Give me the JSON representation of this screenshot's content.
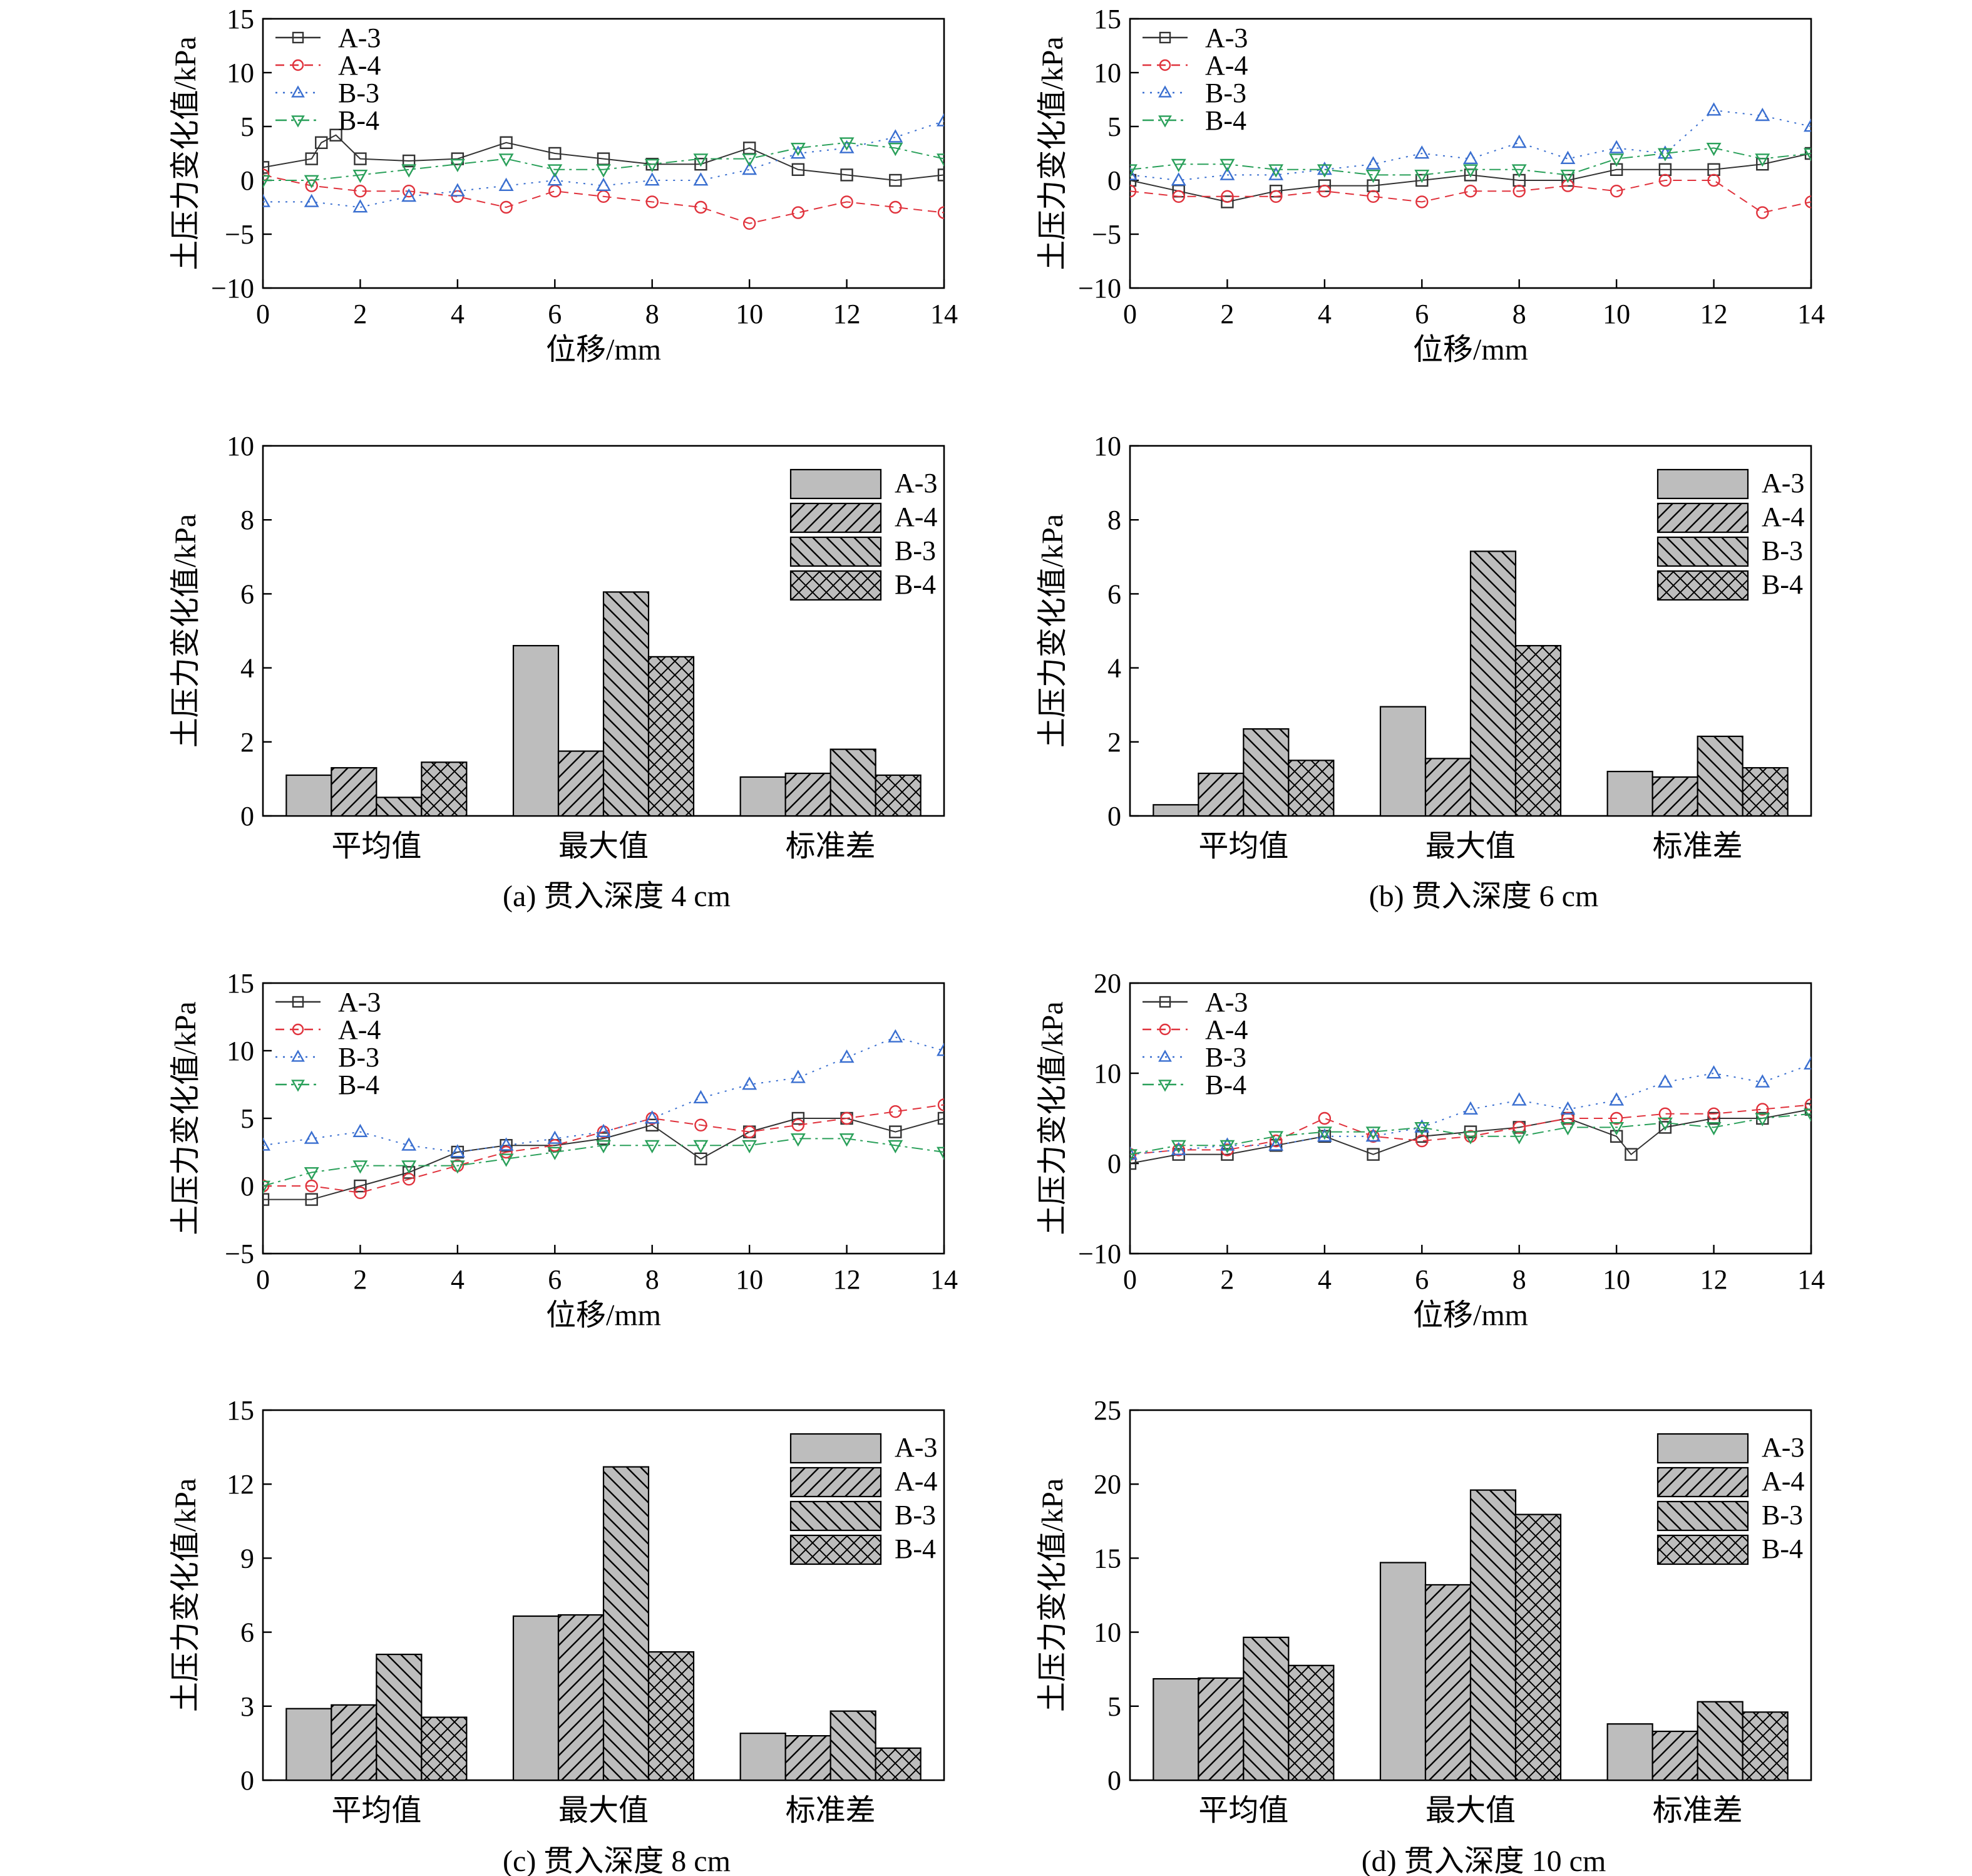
{
  "colors": {
    "A-3": "#333333",
    "A-4": "#e0323c",
    "B-3": "#3a6fd0",
    "B-4": "#2aa05a",
    "bar_fill": "#bdbdbd"
  },
  "figure": {
    "captions": [
      "(a) 贯入深度 4 cm",
      "(b) 贯入深度 6 cm",
      "(c) 贯入深度 8 cm",
      "(d) 贯入深度 10 cm"
    ]
  },
  "chart_data": [
    {
      "type": "scatter",
      "panel": "a-top",
      "xlabel": "位移/mm",
      "ylabel": "土压力变化值/kPa",
      "xlim": [
        0,
        14
      ],
      "ylim": [
        -10,
        15
      ],
      "xticks": [
        0,
        2,
        4,
        6,
        8,
        10,
        12,
        14
      ],
      "yticks": [
        -10,
        -5,
        0,
        5,
        10,
        15
      ],
      "legend_position": "top-left",
      "series": [
        {
          "name": "A-3",
          "marker": "square",
          "x": [
            0,
            1,
            1.2,
            1.5,
            2,
            3,
            4,
            5,
            6,
            7,
            8,
            9,
            10,
            11,
            12,
            13,
            14
          ],
          "y": [
            1.2,
            2,
            3.5,
            4.2,
            2,
            1.8,
            2,
            3.5,
            2.5,
            2,
            1.5,
            1.5,
            3,
            1,
            0.5,
            0,
            0.5
          ]
        },
        {
          "name": "A-4",
          "marker": "circle",
          "x": [
            0,
            1,
            2,
            3,
            4,
            5,
            6,
            7,
            8,
            9,
            10,
            11,
            12,
            13,
            14
          ],
          "y": [
            0.5,
            -0.5,
            -1,
            -1,
            -1.5,
            -2.5,
            -1,
            -1.5,
            -2,
            -2.5,
            -4,
            -3,
            -2,
            -2.5,
            -3
          ]
        },
        {
          "name": "B-3",
          "marker": "triangle-up",
          "x": [
            0,
            1,
            2,
            3,
            4,
            5,
            6,
            7,
            8,
            9,
            10,
            11,
            12,
            13,
            14
          ],
          "y": [
            -2,
            -2,
            -2.5,
            -1.5,
            -1,
            -0.5,
            0,
            -0.5,
            0,
            0,
            1,
            2.5,
            3,
            4,
            5.5
          ]
        },
        {
          "name": "B-4",
          "marker": "triangle-down",
          "x": [
            0,
            1,
            2,
            3,
            4,
            5,
            6,
            7,
            8,
            9,
            10,
            11,
            12,
            13,
            14
          ],
          "y": [
            0,
            0,
            0.5,
            1,
            1.5,
            2,
            1,
            1,
            1.5,
            2,
            2,
            3,
            3.5,
            3,
            2
          ]
        }
      ]
    },
    {
      "type": "scatter",
      "panel": "b-top",
      "xlabel": "位移/mm",
      "ylabel": "土压力变化值/kPa",
      "xlim": [
        0,
        14
      ],
      "ylim": [
        -10,
        15
      ],
      "xticks": [
        0,
        2,
        4,
        6,
        8,
        10,
        12,
        14
      ],
      "yticks": [
        -10,
        -5,
        0,
        5,
        10,
        15
      ],
      "legend_position": "top-left",
      "series": [
        {
          "name": "A-3",
          "marker": "square",
          "x": [
            0,
            1,
            2,
            3,
            4,
            5,
            6,
            7,
            8,
            9,
            10,
            11,
            12,
            13,
            14
          ],
          "y": [
            0,
            -1,
            -2,
            -1,
            -0.5,
            -0.5,
            0,
            0.5,
            0,
            0,
            1,
            1,
            1,
            1.5,
            2.5
          ]
        },
        {
          "name": "A-4",
          "marker": "circle",
          "x": [
            0,
            1,
            2,
            3,
            4,
            5,
            6,
            7,
            8,
            9,
            10,
            11,
            12,
            13,
            14
          ],
          "y": [
            -1,
            -1.5,
            -1.5,
            -1.5,
            -1,
            -1.5,
            -2,
            -1,
            -1,
            -0.5,
            -1,
            0,
            0,
            -3,
            -2
          ]
        },
        {
          "name": "B-3",
          "marker": "triangle-up",
          "x": [
            0,
            1,
            2,
            3,
            4,
            5,
            6,
            7,
            8,
            9,
            10,
            11,
            12,
            13,
            14
          ],
          "y": [
            0.5,
            0,
            0.5,
            0.5,
            1,
            1.5,
            2.5,
            2,
            3.5,
            2,
            3,
            2.5,
            6.5,
            6,
            5
          ]
        },
        {
          "name": "B-4",
          "marker": "triangle-down",
          "x": [
            0,
            1,
            2,
            3,
            4,
            5,
            6,
            7,
            8,
            9,
            10,
            11,
            12,
            13,
            14
          ],
          "y": [
            1,
            1.5,
            1.5,
            1,
            1,
            0.5,
            0.5,
            1,
            1,
            0.5,
            2,
            2.5,
            3,
            2,
            2.5
          ]
        }
      ]
    },
    {
      "type": "bar",
      "panel": "a-bottom",
      "ylabel": "土压力变化值/kPa",
      "ylim": [
        0,
        10
      ],
      "yticks": [
        0,
        2,
        4,
        6,
        8,
        10
      ],
      "categories": [
        "平均值",
        "最大值",
        "标准差"
      ],
      "legend_position": "top-right",
      "series": [
        {
          "name": "A-3",
          "pattern": "solid",
          "values": [
            1.1,
            4.6,
            1.05
          ]
        },
        {
          "name": "A-4",
          "pattern": "diag-right",
          "values": [
            1.3,
            1.75,
            1.15
          ]
        },
        {
          "name": "B-3",
          "pattern": "diag-left",
          "values": [
            0.5,
            6.05,
            1.8
          ]
        },
        {
          "name": "B-4",
          "pattern": "crosshatch",
          "values": [
            1.45,
            4.3,
            1.1
          ]
        }
      ]
    },
    {
      "type": "bar",
      "panel": "b-bottom",
      "ylabel": "土压力变化值/kPa",
      "ylim": [
        0,
        10
      ],
      "yticks": [
        0,
        2,
        4,
        6,
        8,
        10
      ],
      "categories": [
        "平均值",
        "最大值",
        "标准差"
      ],
      "legend_position": "top-right",
      "series": [
        {
          "name": "A-3",
          "pattern": "solid",
          "values": [
            0.3,
            2.95,
            1.2
          ]
        },
        {
          "name": "A-4",
          "pattern": "diag-right",
          "values": [
            1.15,
            1.55,
            1.05
          ]
        },
        {
          "name": "B-3",
          "pattern": "diag-left",
          "values": [
            2.35,
            7.15,
            2.15
          ]
        },
        {
          "name": "B-4",
          "pattern": "crosshatch",
          "values": [
            1.5,
            4.6,
            1.3
          ]
        }
      ]
    },
    {
      "type": "scatter",
      "panel": "c-top",
      "xlabel": "位移/mm",
      "ylabel": "土压力变化值/kPa",
      "xlim": [
        0,
        14
      ],
      "ylim": [
        -5,
        15
      ],
      "xticks": [
        0,
        2,
        4,
        6,
        8,
        10,
        12,
        14
      ],
      "yticks": [
        -5,
        0,
        5,
        10,
        15
      ],
      "legend_position": "top-left",
      "series": [
        {
          "name": "A-3",
          "marker": "square",
          "x": [
            0,
            1,
            2,
            3,
            4,
            5,
            6,
            7,
            8,
            9,
            10,
            11,
            12,
            13,
            14
          ],
          "y": [
            -1,
            -1,
            0,
            1,
            2.5,
            3,
            3,
            3.5,
            4.5,
            2,
            4,
            5,
            5,
            4,
            5
          ]
        },
        {
          "name": "A-4",
          "marker": "circle",
          "x": [
            0,
            1,
            2,
            3,
            4,
            5,
            6,
            7,
            8,
            9,
            10,
            11,
            12,
            13,
            14
          ],
          "y": [
            0,
            0,
            -0.5,
            0.5,
            1.5,
            2.5,
            3,
            4,
            5,
            4.5,
            4,
            4.5,
            5,
            5.5,
            6
          ]
        },
        {
          "name": "B-3",
          "marker": "triangle-up",
          "x": [
            0,
            1,
            2,
            3,
            4,
            5,
            6,
            7,
            8,
            9,
            10,
            11,
            12,
            13,
            14
          ],
          "y": [
            3,
            3.5,
            4,
            3,
            2.5,
            3,
            3.5,
            4,
            5,
            6.5,
            7.5,
            8,
            9.5,
            11,
            10
          ]
        },
        {
          "name": "B-4",
          "marker": "triangle-down",
          "x": [
            0,
            1,
            2,
            3,
            4,
            5,
            6,
            7,
            8,
            9,
            10,
            11,
            12,
            13,
            14
          ],
          "y": [
            0,
            1,
            1.5,
            1.5,
            1.5,
            2,
            2.5,
            3,
            3,
            3,
            3,
            3.5,
            3.5,
            3,
            2.5
          ]
        }
      ]
    },
    {
      "type": "scatter",
      "panel": "d-top",
      "xlabel": "位移/mm",
      "ylabel": "土压力变化值/kPa",
      "xlim": [
        0,
        14
      ],
      "ylim": [
        -10,
        20
      ],
      "xticks": [
        0,
        2,
        4,
        6,
        8,
        10,
        12,
        14
      ],
      "yticks": [
        -10,
        0,
        10,
        20
      ],
      "legend_position": "top-left",
      "series": [
        {
          "name": "A-3",
          "marker": "square",
          "x": [
            0,
            1,
            2,
            3,
            4,
            5,
            6,
            7,
            8,
            9,
            10,
            10.3,
            11,
            12,
            13,
            14
          ],
          "y": [
            0,
            1,
            1,
            2,
            3,
            1,
            3,
            3.5,
            4,
            5,
            3,
            1,
            4,
            5,
            5,
            6
          ]
        },
        {
          "name": "A-4",
          "marker": "circle",
          "x": [
            0,
            1,
            2,
            3,
            4,
            5,
            6,
            7,
            8,
            9,
            10,
            11,
            12,
            13,
            14
          ],
          "y": [
            1,
            1.5,
            1.5,
            2.5,
            5,
            3,
            2.5,
            3,
            4,
            5,
            5,
            5.5,
            5.5,
            6,
            6.5
          ]
        },
        {
          "name": "B-3",
          "marker": "triangle-up",
          "x": [
            0,
            1,
            2,
            3,
            4,
            5,
            6,
            7,
            8,
            9,
            10,
            11,
            12,
            13,
            14
          ],
          "y": [
            1,
            1.5,
            2,
            2,
            3,
            3,
            4,
            6,
            7,
            6,
            7,
            9,
            10,
            9,
            11
          ]
        },
        {
          "name": "B-4",
          "marker": "triangle-down",
          "x": [
            0,
            1,
            2,
            3,
            4,
            5,
            6,
            7,
            8,
            9,
            10,
            11,
            12,
            13,
            14
          ],
          "y": [
            1,
            2,
            2,
            3,
            3.5,
            3.5,
            4,
            3,
            3,
            4,
            4,
            4.5,
            4,
            5,
            5.5
          ]
        }
      ]
    },
    {
      "type": "bar",
      "panel": "c-bottom",
      "ylabel": "土压力变化值/kPa",
      "ylim": [
        0,
        15
      ],
      "yticks": [
        0,
        3,
        6,
        9,
        12,
        15
      ],
      "categories": [
        "平均值",
        "最大值",
        "标准差"
      ],
      "legend_position": "top-right",
      "series": [
        {
          "name": "A-3",
          "pattern": "solid",
          "values": [
            2.9,
            6.65,
            1.9
          ]
        },
        {
          "name": "A-4",
          "pattern": "diag-right",
          "values": [
            3.05,
            6.7,
            1.8
          ]
        },
        {
          "name": "B-3",
          "pattern": "diag-left",
          "values": [
            5.1,
            12.7,
            2.8
          ]
        },
        {
          "name": "B-4",
          "pattern": "crosshatch",
          "values": [
            2.55,
            5.2,
            1.3
          ]
        }
      ]
    },
    {
      "type": "bar",
      "panel": "d-bottom",
      "ylabel": "土压力变化值/kPa",
      "ylim": [
        0,
        25
      ],
      "yticks": [
        0,
        5,
        10,
        15,
        20,
        25
      ],
      "categories": [
        "平均值",
        "最大值",
        "标准差"
      ],
      "legend_position": "top-right",
      "series": [
        {
          "name": "A-3",
          "pattern": "solid",
          "values": [
            6.85,
            14.7,
            3.8
          ]
        },
        {
          "name": "A-4",
          "pattern": "diag-right",
          "values": [
            6.9,
            13.2,
            3.3
          ]
        },
        {
          "name": "B-3",
          "pattern": "diag-left",
          "values": [
            9.65,
            19.6,
            5.3
          ]
        },
        {
          "name": "B-4",
          "pattern": "crosshatch",
          "values": [
            7.75,
            17.95,
            4.6
          ]
        }
      ]
    }
  ]
}
